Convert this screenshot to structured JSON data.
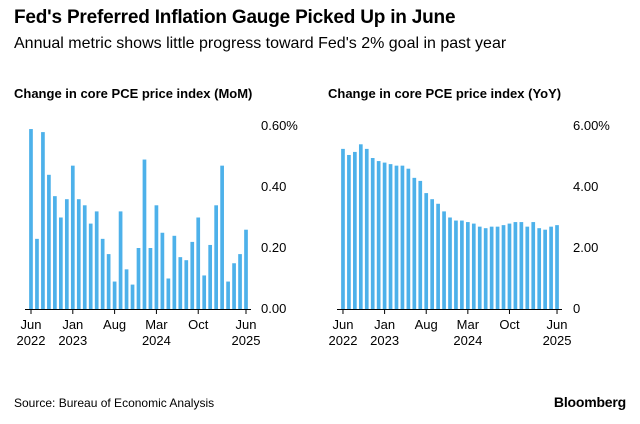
{
  "header": {
    "title": "Fed's Preferred Inflation Gauge Picked Up in June",
    "subtitle": "Annual metric shows little progress toward Fed's 2% goal in past year"
  },
  "footer": {
    "source": "Source: Bureau of Economic Analysis",
    "brand": "Bloomberg"
  },
  "colors": {
    "bar": "#4db1ea",
    "axis": "#000000",
    "text": "#000000"
  },
  "chart_data": [
    {
      "type": "bar",
      "title": "Change in core PCE price index (MoM)",
      "xlabel": "",
      "ylabel": "",
      "ylim": [
        0,
        0.6
      ],
      "y_ticks": [
        {
          "value": 0,
          "label": "0.00"
        },
        {
          "value": 0.2,
          "label": "0.20"
        },
        {
          "value": 0.4,
          "label": "0.40"
        },
        {
          "value": 0.6,
          "label": "0.60%"
        }
      ],
      "x_ticks": [
        {
          "index": 0,
          "line1": "Jun",
          "line2": "2022"
        },
        {
          "index": 7,
          "line1": "Jan",
          "line2": "2023"
        },
        {
          "index": 14,
          "line1": "Aug",
          "line2": ""
        },
        {
          "index": 21,
          "line1": "Mar",
          "line2": "2024"
        },
        {
          "index": 28,
          "line1": "Oct",
          "line2": ""
        },
        {
          "index": 36,
          "line1": "Jun",
          "line2": "2025"
        }
      ],
      "categories": [
        "Jun 2022",
        "Jul 2022",
        "Aug 2022",
        "Sep 2022",
        "Oct 2022",
        "Nov 2022",
        "Dec 2022",
        "Jan 2023",
        "Feb 2023",
        "Mar 2023",
        "Apr 2023",
        "May 2023",
        "Jun 2023",
        "Jul 2023",
        "Aug 2023",
        "Sep 2023",
        "Oct 2023",
        "Nov 2023",
        "Dec 2023",
        "Jan 2024",
        "Feb 2024",
        "Mar 2024",
        "Apr 2024",
        "May 2024",
        "Jun 2024",
        "Jul 2024",
        "Aug 2024",
        "Sep 2024",
        "Oct 2024",
        "Nov 2024",
        "Dec 2024",
        "Jan 2025",
        "Feb 2025",
        "Mar 2025",
        "Apr 2025",
        "May 2025",
        "Jun 2025"
      ],
      "values": [
        0.59,
        0.23,
        0.58,
        0.44,
        0.37,
        0.3,
        0.36,
        0.47,
        0.36,
        0.34,
        0.28,
        0.32,
        0.23,
        0.18,
        0.09,
        0.32,
        0.13,
        0.08,
        0.2,
        0.49,
        0.2,
        0.34,
        0.25,
        0.1,
        0.24,
        0.17,
        0.16,
        0.22,
        0.3,
        0.11,
        0.21,
        0.34,
        0.47,
        0.09,
        0.15,
        0.18,
        0.26
      ]
    },
    {
      "type": "bar",
      "title": "Change in core PCE price index (YoY)",
      "xlabel": "",
      "ylabel": "",
      "ylim": [
        0,
        6
      ],
      "y_ticks": [
        {
          "value": 0,
          "label": "0"
        },
        {
          "value": 2,
          "label": "2.00"
        },
        {
          "value": 4,
          "label": "4.00"
        },
        {
          "value": 6,
          "label": "6.00%"
        }
      ],
      "x_ticks": [
        {
          "index": 0,
          "line1": "Jun",
          "line2": "2022"
        },
        {
          "index": 7,
          "line1": "Jan",
          "line2": "2023"
        },
        {
          "index": 14,
          "line1": "Aug",
          "line2": ""
        },
        {
          "index": 21,
          "line1": "Mar",
          "line2": "2024"
        },
        {
          "index": 28,
          "line1": "Oct",
          "line2": ""
        },
        {
          "index": 36,
          "line1": "Jun",
          "line2": "2025"
        }
      ],
      "categories": [
        "Jun 2022",
        "Jul 2022",
        "Aug 2022",
        "Sep 2022",
        "Oct 2022",
        "Nov 2022",
        "Dec 2022",
        "Jan 2023",
        "Feb 2023",
        "Mar 2023",
        "Apr 2023",
        "May 2023",
        "Jun 2023",
        "Jul 2023",
        "Aug 2023",
        "Sep 2023",
        "Oct 2023",
        "Nov 2023",
        "Dec 2023",
        "Jan 2024",
        "Feb 2024",
        "Mar 2024",
        "Apr 2024",
        "May 2024",
        "Jun 2024",
        "Jul 2024",
        "Aug 2024",
        "Sep 2024",
        "Oct 2024",
        "Nov 2024",
        "Dec 2024",
        "Jan 2025",
        "Feb 2025",
        "Mar 2025",
        "Apr 2025",
        "May 2025",
        "Jun 2025"
      ],
      "values": [
        5.25,
        5.05,
        5.15,
        5.4,
        5.25,
        4.95,
        4.85,
        4.8,
        4.75,
        4.7,
        4.7,
        4.6,
        4.3,
        4.2,
        3.8,
        3.6,
        3.45,
        3.2,
        3.0,
        2.9,
        2.9,
        2.85,
        2.8,
        2.7,
        2.65,
        2.7,
        2.7,
        2.75,
        2.8,
        2.85,
        2.85,
        2.7,
        2.85,
        2.65,
        2.6,
        2.7,
        2.75
      ]
    }
  ]
}
